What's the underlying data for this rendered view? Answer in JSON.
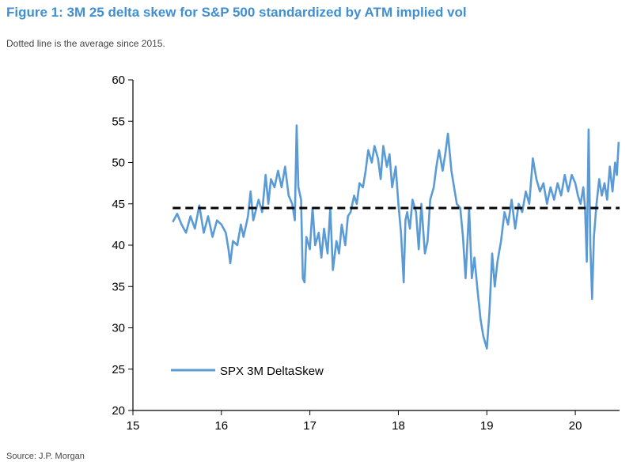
{
  "header": {
    "title": "Figure 1: 3M 25 delta skew for S&P 500 standardized by ATM implied vol",
    "subtitle": "Dotted line is the average since 2015."
  },
  "footer": {
    "source": "Source: J.P. Morgan"
  },
  "colors": {
    "title": "#3f8fd2",
    "series": "#5b9bd5",
    "average": "#000000"
  },
  "chart_data": {
    "type": "line",
    "title": "",
    "xlabel": "",
    "ylabel": "",
    "xlim": [
      15,
      20.5
    ],
    "ylim": [
      20,
      60
    ],
    "x_ticks": [
      15,
      16,
      17,
      18,
      19,
      20
    ],
    "x_tick_labels": [
      "15",
      "16",
      "17",
      "18",
      "19",
      "20"
    ],
    "y_ticks": [
      20,
      25,
      30,
      35,
      40,
      45,
      50,
      55,
      60
    ],
    "y_tick_labels": [
      "20",
      "25",
      "30",
      "35",
      "40",
      "45",
      "50",
      "55",
      "60"
    ],
    "grid": false,
    "legend_position": "bottom-left",
    "series": [
      {
        "name": "SPX 3M DeltaSkew",
        "style": "solid",
        "points": [
          [
            15.45,
            42.8
          ],
          [
            15.5,
            43.8
          ],
          [
            15.55,
            42.5
          ],
          [
            15.6,
            41.5
          ],
          [
            15.65,
            43.5
          ],
          [
            15.7,
            42.0
          ],
          [
            15.75,
            44.8
          ],
          [
            15.8,
            41.5
          ],
          [
            15.85,
            43.5
          ],
          [
            15.9,
            41.0
          ],
          [
            15.95,
            43.0
          ],
          [
            16.0,
            42.5
          ],
          [
            16.05,
            41.5
          ],
          [
            16.08,
            39.5
          ],
          [
            16.1,
            37.8
          ],
          [
            16.13,
            40.5
          ],
          [
            16.18,
            40.0
          ],
          [
            16.22,
            42.5
          ],
          [
            16.25,
            41.0
          ],
          [
            16.3,
            43.5
          ],
          [
            16.33,
            46.5
          ],
          [
            16.36,
            43.0
          ],
          [
            16.42,
            45.5
          ],
          [
            16.46,
            44.0
          ],
          [
            16.5,
            48.5
          ],
          [
            16.53,
            45.0
          ],
          [
            16.56,
            48.0
          ],
          [
            16.6,
            47.0
          ],
          [
            16.64,
            49.0
          ],
          [
            16.68,
            47.0
          ],
          [
            16.72,
            49.5
          ],
          [
            16.76,
            46.0
          ],
          [
            16.8,
            45.0
          ],
          [
            16.83,
            43.0
          ],
          [
            16.85,
            54.5
          ],
          [
            16.87,
            47.0
          ],
          [
            16.9,
            45.5
          ],
          [
            16.92,
            36.0
          ],
          [
            16.94,
            35.5
          ],
          [
            16.96,
            41.0
          ],
          [
            17.0,
            39.5
          ],
          [
            17.03,
            44.5
          ],
          [
            17.06,
            40.0
          ],
          [
            17.1,
            41.5
          ],
          [
            17.13,
            38.5
          ],
          [
            17.16,
            42.0
          ],
          [
            17.2,
            39.0
          ],
          [
            17.23,
            44.5
          ],
          [
            17.26,
            37.0
          ],
          [
            17.3,
            40.5
          ],
          [
            17.33,
            39.0
          ],
          [
            17.36,
            42.5
          ],
          [
            17.4,
            40.0
          ],
          [
            17.43,
            43.5
          ],
          [
            17.46,
            44.0
          ],
          [
            17.5,
            46.0
          ],
          [
            17.53,
            45.0
          ],
          [
            17.56,
            47.5
          ],
          [
            17.6,
            47.0
          ],
          [
            17.63,
            49.0
          ],
          [
            17.66,
            51.5
          ],
          [
            17.7,
            50.0
          ],
          [
            17.73,
            52.0
          ],
          [
            17.77,
            50.5
          ],
          [
            17.8,
            48.0
          ],
          [
            17.83,
            52.0
          ],
          [
            17.87,
            49.5
          ],
          [
            17.9,
            51.0
          ],
          [
            17.93,
            47.0
          ],
          [
            17.97,
            49.5
          ],
          [
            18.0,
            45.0
          ],
          [
            18.03,
            41.5
          ],
          [
            18.06,
            35.5
          ],
          [
            18.08,
            43.0
          ],
          [
            18.1,
            44.0
          ],
          [
            18.13,
            42.0
          ],
          [
            18.16,
            45.5
          ],
          [
            18.2,
            44.0
          ],
          [
            18.23,
            39.5
          ],
          [
            18.26,
            45.0
          ],
          [
            18.3,
            39.0
          ],
          [
            18.33,
            40.5
          ],
          [
            18.36,
            45.5
          ],
          [
            18.4,
            47.0
          ],
          [
            18.43,
            49.5
          ],
          [
            18.46,
            51.5
          ],
          [
            18.5,
            49.0
          ],
          [
            18.53,
            51.0
          ],
          [
            18.56,
            53.5
          ],
          [
            18.6,
            49.0
          ],
          [
            18.63,
            47.0
          ],
          [
            18.66,
            45.0
          ],
          [
            18.7,
            44.5
          ],
          [
            18.73,
            41.0
          ],
          [
            18.76,
            36.0
          ],
          [
            18.8,
            44.5
          ],
          [
            18.83,
            36.0
          ],
          [
            18.86,
            38.5
          ],
          [
            18.9,
            34.0
          ],
          [
            18.93,
            31.0
          ],
          [
            18.96,
            29.0
          ],
          [
            19.0,
            27.5
          ],
          [
            19.03,
            32.0
          ],
          [
            19.06,
            39.0
          ],
          [
            19.09,
            35.0
          ],
          [
            19.12,
            38.0
          ],
          [
            19.16,
            40.5
          ],
          [
            19.2,
            44.0
          ],
          [
            19.24,
            42.5
          ],
          [
            19.28,
            45.5
          ],
          [
            19.32,
            42.0
          ],
          [
            19.36,
            45.0
          ],
          [
            19.4,
            44.0
          ],
          [
            19.44,
            46.5
          ],
          [
            19.48,
            45.0
          ],
          [
            19.52,
            50.5
          ],
          [
            19.56,
            48.0
          ],
          [
            19.6,
            46.5
          ],
          [
            19.64,
            47.5
          ],
          [
            19.68,
            45.0
          ],
          [
            19.72,
            47.0
          ],
          [
            19.76,
            45.5
          ],
          [
            19.8,
            47.5
          ],
          [
            19.84,
            46.0
          ],
          [
            19.88,
            48.5
          ],
          [
            19.92,
            46.5
          ],
          [
            19.96,
            48.5
          ],
          [
            20.0,
            47.5
          ],
          [
            20.03,
            46.0
          ],
          [
            20.06,
            45.0
          ],
          [
            20.09,
            47.0
          ],
          [
            20.11,
            44.5
          ],
          [
            20.13,
            38.0
          ],
          [
            20.15,
            54.0
          ],
          [
            20.17,
            40.0
          ],
          [
            20.19,
            33.5
          ],
          [
            20.21,
            41.0
          ],
          [
            20.24,
            45.0
          ],
          [
            20.27,
            48.0
          ],
          [
            20.3,
            46.0
          ],
          [
            20.33,
            47.5
          ],
          [
            20.36,
            45.5
          ],
          [
            20.39,
            49.5
          ],
          [
            20.42,
            46.5
          ],
          [
            20.45,
            50.0
          ],
          [
            20.47,
            48.5
          ],
          [
            20.49,
            52.5
          ]
        ]
      },
      {
        "name": "",
        "style": "dashed",
        "points": [
          [
            15.45,
            44.5
          ],
          [
            20.5,
            44.5
          ]
        ]
      }
    ]
  }
}
